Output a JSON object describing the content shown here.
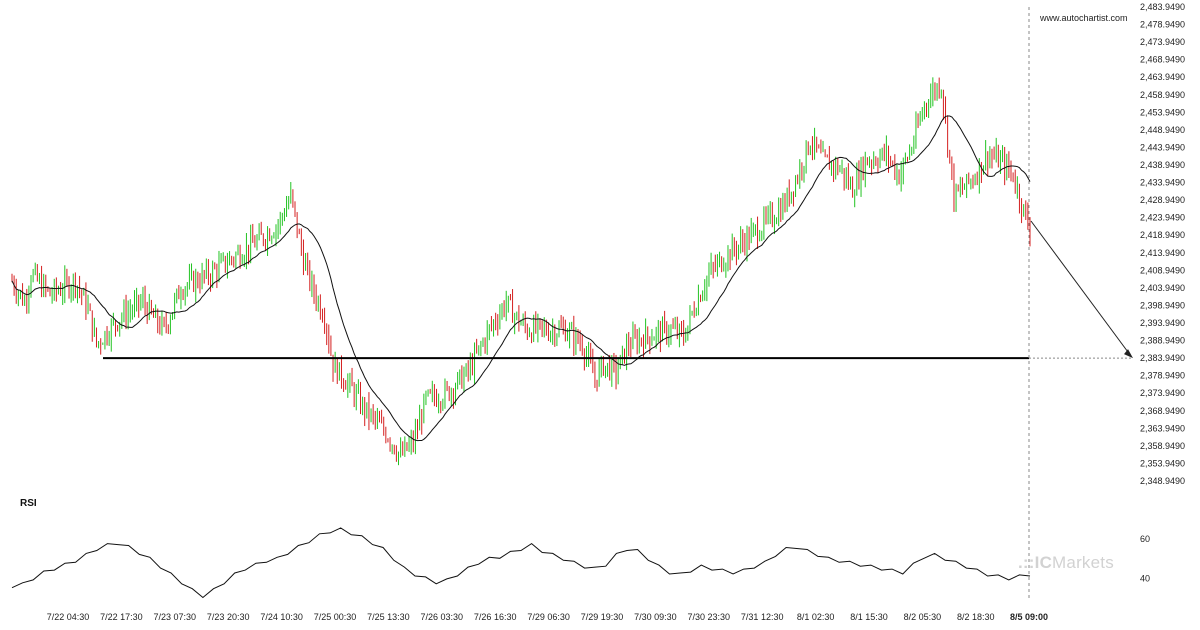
{
  "watermark": "www.autochartist.com",
  "rsi_label": "RSI",
  "brand": {
    "logo": ".::IC",
    "name": "Markets"
  },
  "colors": {
    "up": "#22c322",
    "down": "#d42020",
    "ma": "#111111",
    "rsi": "#111111",
    "support_line": "#000000",
    "arrow": "#222222",
    "dashed": "#888888"
  },
  "chart_data": [
    {
      "type": "candlestick",
      "title": "",
      "y_ticks": [
        "2,483.9490",
        "2,478.9490",
        "2,473.9490",
        "2,468.9490",
        "2,463.9490",
        "2,458.9490",
        "2,453.9490",
        "2,448.9490",
        "2,443.9490",
        "2,438.9490",
        "2,433.9490",
        "2,428.9490",
        "2,423.9490",
        "2,418.9490",
        "2,413.9490",
        "2,408.9490",
        "2,403.9490",
        "2,398.9490",
        "2,393.9490",
        "2,388.9490",
        "2,383.9490",
        "2,378.9490",
        "2,373.9490",
        "2,368.9490",
        "2,363.9490",
        "2,358.9490",
        "2,353.9490",
        "2,348.9490"
      ],
      "x_ticks": [
        "7/22 04:30",
        "7/22 17:30",
        "7/23 07:30",
        "7/23 20:30",
        "7/24 10:30",
        "7/25 00:30",
        "7/25 13:30",
        "7/26 03:30",
        "7/26 16:30",
        "7/29 06:30",
        "7/29 19:30",
        "7/30 09:30",
        "7/30 23:30",
        "7/31 12:30",
        "8/1 02:30",
        "8/1 15:30",
        "8/2 05:30",
        "8/2 18:30",
        "8/5 09:00"
      ],
      "ylim": [
        2348.949,
        2483.949
      ],
      "price_path": [
        [
          0,
          2406
        ],
        [
          6,
          2400
        ],
        [
          9,
          2408
        ],
        [
          18,
          2402
        ],
        [
          30,
          2406
        ],
        [
          36,
          2398
        ],
        [
          40,
          2388
        ],
        [
          52,
          2396
        ],
        [
          62,
          2400
        ],
        [
          66,
          2396
        ],
        [
          72,
          2392
        ],
        [
          80,
          2404
        ],
        [
          94,
          2408
        ],
        [
          108,
          2414
        ],
        [
          118,
          2418
        ],
        [
          126,
          2422
        ],
        [
          132,
          2430
        ],
        [
          138,
          2412
        ],
        [
          142,
          2404
        ],
        [
          148,
          2396
        ],
        [
          152,
          2382
        ],
        [
          160,
          2376
        ],
        [
          166,
          2370
        ],
        [
          172,
          2366
        ],
        [
          178,
          2362
        ],
        [
          184,
          2356
        ],
        [
          190,
          2360
        ],
        [
          196,
          2372
        ],
        [
          206,
          2374
        ],
        [
          216,
          2380
        ],
        [
          226,
          2392
        ],
        [
          234,
          2400
        ],
        [
          238,
          2396
        ],
        [
          244,
          2392
        ],
        [
          250,
          2392
        ],
        [
          262,
          2392
        ],
        [
          270,
          2388
        ],
        [
          276,
          2378
        ],
        [
          280,
          2382
        ],
        [
          286,
          2380
        ],
        [
          292,
          2388
        ],
        [
          300,
          2390
        ],
        [
          312,
          2392
        ],
        [
          318,
          2390
        ],
        [
          324,
          2400
        ],
        [
          330,
          2408
        ],
        [
          340,
          2414
        ],
        [
          352,
          2420
        ],
        [
          360,
          2424
        ],
        [
          366,
          2428
        ],
        [
          372,
          2436
        ],
        [
          378,
          2446
        ],
        [
          384,
          2440
        ],
        [
          392,
          2438
        ],
        [
          398,
          2432
        ],
        [
          404,
          2440
        ],
        [
          414,
          2442
        ],
        [
          420,
          2436
        ],
        [
          426,
          2444
        ],
        [
          432,
          2456
        ],
        [
          436,
          2460
        ],
        [
          440,
          2462
        ],
        [
          446,
          2430
        ],
        [
          450,
          2432
        ],
        [
          456,
          2436
        ],
        [
          462,
          2442
        ],
        [
          468,
          2440
        ],
        [
          474,
          2436
        ],
        [
          478,
          2428
        ],
        [
          482,
          2420
        ]
      ],
      "support_level": 2383.949,
      "projection": {
        "from": "8/5 09:00",
        "target": 2383.949
      }
    },
    {
      "type": "line",
      "title": "RSI",
      "y_ticks": [
        "60",
        "40"
      ],
      "values_note": "",
      "series": [
        {
          "values": [
            36,
            37,
            40,
            43,
            45,
            47,
            49,
            52,
            55,
            57,
            58,
            56,
            53,
            50,
            46,
            42,
            38,
            34,
            31,
            34,
            38,
            42,
            45,
            47,
            49,
            50,
            53,
            56,
            59,
            62,
            64,
            65,
            63,
            61,
            58,
            55,
            50,
            45,
            42,
            40,
            38,
            39,
            42,
            45,
            48,
            50,
            51,
            53,
            55,
            57,
            54,
            52,
            50,
            48,
            46,
            45,
            47,
            52,
            55,
            54,
            50,
            46,
            43,
            42,
            44,
            46,
            45,
            44,
            43,
            44,
            46,
            48,
            52,
            55,
            56,
            54,
            52,
            50,
            49,
            48,
            47,
            46,
            45,
            44,
            43,
            47,
            51,
            52,
            50,
            48,
            46,
            44,
            42,
            41,
            40,
            41,
            42
          ]
        }
      ]
    }
  ]
}
